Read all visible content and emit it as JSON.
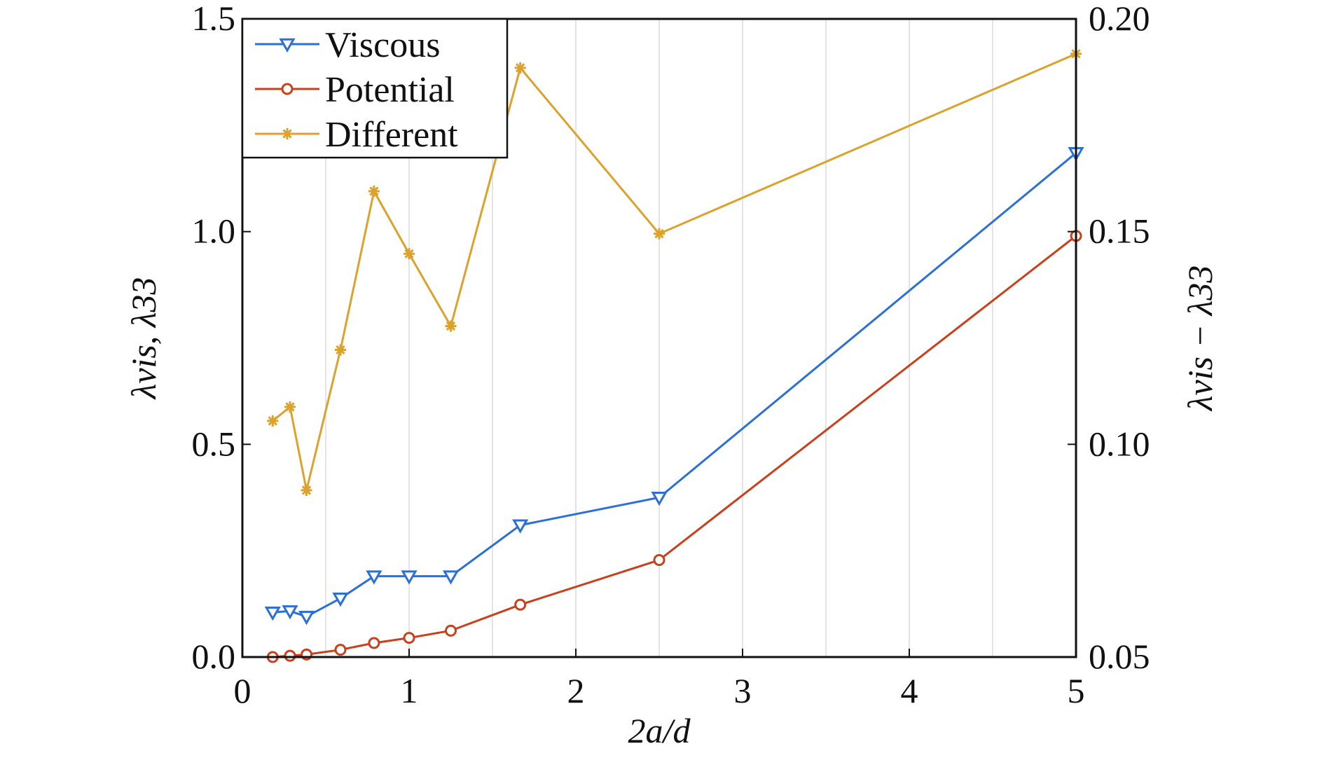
{
  "chart_data": {
    "type": "line",
    "xlabel": "2a/d",
    "ylabel": "λvis, λ33",
    "y2label": "λvis − λ33",
    "xlim": [
      0,
      5
    ],
    "ylim": [
      0,
      1.5
    ],
    "y2lim": [
      0.05,
      0.2
    ],
    "x_ticks": [
      0,
      1,
      2,
      3,
      4,
      5
    ],
    "y_ticks": [
      0.0,
      0.5,
      1.0,
      1.5
    ],
    "y2_ticks": [
      0.05,
      0.1,
      0.15,
      0.2
    ],
    "x_tick_labels": [
      "0",
      "1",
      "2",
      "3",
      "4",
      "5"
    ],
    "y_tick_labels": [
      "0.0",
      "0.5",
      "1.0",
      "1.5"
    ],
    "y2_tick_labels": [
      "0.05",
      "0.10",
      "0.15",
      "0.20"
    ],
    "grid": "vertical",
    "legend_position": "top-left",
    "x": [
      0.1818,
      0.2857,
      0.3846,
      0.5882,
      0.7895,
      1.0,
      1.25,
      1.6667,
      2.5,
      5.0
    ],
    "series": [
      {
        "name": "Viscous",
        "axis": "left",
        "marker": "triangle-down",
        "color": "#2a70d8",
        "values": [
          0.105,
          0.108,
          0.095,
          0.138,
          0.19,
          0.19,
          0.19,
          0.31,
          0.375,
          1.185
        ]
      },
      {
        "name": "Potential",
        "axis": "left",
        "marker": "circle",
        "color": "#c8401c",
        "values": [
          0.0,
          0.003,
          0.006,
          0.017,
          0.033,
          0.045,
          0.062,
          0.123,
          0.228,
          0.99
        ]
      },
      {
        "name": "Different",
        "axis": "right",
        "marker": "star",
        "color": "#dca22c",
        "values": [
          0.1055,
          0.1088,
          0.0892,
          0.1222,
          0.1595,
          0.1448,
          0.1278,
          0.1885,
          0.1495,
          0.1918
        ]
      }
    ]
  }
}
